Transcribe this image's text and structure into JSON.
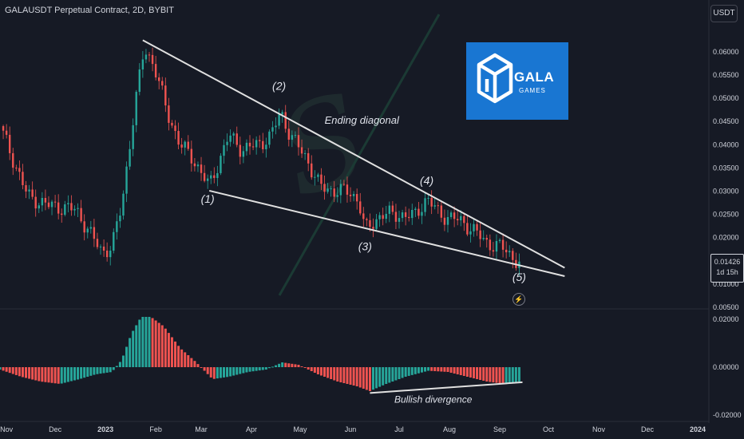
{
  "header": {
    "title": "GALAUSDT Perpetual Contract, 2D, BYBIT",
    "currency": "USDT"
  },
  "logo": {
    "icon": "gala-cube-logo",
    "name": "GALA",
    "sub": "GAMES"
  },
  "last_price": {
    "value": "0.01426",
    "countdown": "1d 15h"
  },
  "icons": {
    "alert": "lightning-icon"
  },
  "colors": {
    "up": "#26a69a",
    "down": "#ef5350",
    "background": "#161a25",
    "lines": "#e0e0e0"
  },
  "chart_data": [
    {
      "type": "candlestick",
      "pane": "price",
      "ylim": [
        0.005,
        0.066
      ],
      "y_ticks": [
        "0.00500",
        "0.01000",
        "0.01500",
        "0.02000",
        "0.02500",
        "0.03000",
        "0.03500",
        "0.04000",
        "0.04500",
        "0.05000",
        "0.05500",
        "0.06000"
      ],
      "x_ticks": [
        "Nov",
        "Dec",
        "2023",
        "Feb",
        "Mar",
        "Apr",
        "May",
        "Jun",
        "Jul",
        "Aug",
        "Sep",
        "Oct",
        "Nov",
        "Dec",
        "2024"
      ],
      "close_path": [
        {
          "x": "2022-10-28",
          "y": 0.044
        },
        {
          "x": "2022-11-06",
          "y": 0.036
        },
        {
          "x": "2022-11-14",
          "y": 0.029
        },
        {
          "x": "2022-11-26",
          "y": 0.027
        },
        {
          "x": "2022-12-14",
          "y": 0.026
        },
        {
          "x": "2022-12-24",
          "y": 0.02
        },
        {
          "x": "2022-12-30",
          "y": 0.017
        },
        {
          "x": "2023-01-05",
          "y": 0.018
        },
        {
          "x": "2023-01-11",
          "y": 0.027
        },
        {
          "x": "2023-01-19",
          "y": 0.048
        },
        {
          "x": "2023-01-25",
          "y": 0.061
        },
        {
          "x": "2023-01-31",
          "y": 0.057
        },
        {
          "x": "2023-02-08",
          "y": 0.047
        },
        {
          "x": "2023-02-16",
          "y": 0.04
        },
        {
          "x": "2023-02-24",
          "y": 0.037
        },
        {
          "x": "2023-03-06",
          "y": 0.031
        },
        {
          "x": "2023-03-18",
          "y": 0.042
        },
        {
          "x": "2023-03-26",
          "y": 0.039
        },
        {
          "x": "2023-04-05",
          "y": 0.04
        },
        {
          "x": "2023-04-13",
          "y": 0.042
        },
        {
          "x": "2023-04-19",
          "y": 0.047
        },
        {
          "x": "2023-04-25",
          "y": 0.042
        },
        {
          "x": "2023-05-05",
          "y": 0.037
        },
        {
          "x": "2023-05-13",
          "y": 0.031
        },
        {
          "x": "2023-05-23",
          "y": 0.03
        },
        {
          "x": "2023-05-31",
          "y": 0.03
        },
        {
          "x": "2023-06-06",
          "y": 0.028
        },
        {
          "x": "2023-06-10",
          "y": 0.0215
        },
        {
          "x": "2023-06-20",
          "y": 0.025
        },
        {
          "x": "2023-06-30",
          "y": 0.025
        },
        {
          "x": "2023-07-10",
          "y": 0.0245
        },
        {
          "x": "2023-07-18",
          "y": 0.0285
        },
        {
          "x": "2023-07-26",
          "y": 0.025
        },
        {
          "x": "2023-08-05",
          "y": 0.024
        },
        {
          "x": "2023-08-15",
          "y": 0.022
        },
        {
          "x": "2023-08-23",
          "y": 0.019
        },
        {
          "x": "2023-09-02",
          "y": 0.018
        },
        {
          "x": "2023-09-10",
          "y": 0.0155
        },
        {
          "x": "2023-09-14",
          "y": 0.01426
        }
      ],
      "trendlines": [
        {
          "from": {
            "x": "2023-01-24",
            "y": 0.0625
          },
          "to": {
            "x": "2023-10-11",
            "y": 0.0135
          }
        },
        {
          "from": {
            "x": "2023-03-06",
            "y": 0.0301
          },
          "to": {
            "x": "2023-10-11",
            "y": 0.0117
          }
        }
      ],
      "annotations": [
        {
          "text": "(1)",
          "x": "2023-03-05",
          "y": 0.0275
        },
        {
          "text": "(2)",
          "x": "2023-04-18",
          "y": 0.0518
        },
        {
          "text": "(3)",
          "x": "2023-06-10",
          "y": 0.0173
        },
        {
          "text": "(4)",
          "x": "2023-07-18",
          "y": 0.0315
        },
        {
          "text": "(5)",
          "x": "2023-09-13",
          "y": 0.0107
        },
        {
          "text": "Ending diagonal",
          "x": "2023-06-08",
          "y": 0.0445
        }
      ]
    },
    {
      "type": "histogram",
      "pane": "oscillator",
      "ylim": [
        -0.022,
        0.024
      ],
      "y_ticks": [
        "0.02000",
        "0.00000",
        "-0.02000"
      ],
      "series_path": [
        {
          "x": "2022-10-28",
          "y": -0.001
        },
        {
          "x": "2022-11-10",
          "y": -0.004
        },
        {
          "x": "2022-11-22",
          "y": -0.006
        },
        {
          "x": "2022-12-04",
          "y": -0.007
        },
        {
          "x": "2022-12-16",
          "y": -0.005
        },
        {
          "x": "2022-12-26",
          "y": -0.003
        },
        {
          "x": "2023-01-05",
          "y": -0.002
        },
        {
          "x": "2023-01-11",
          "y": 0.003
        },
        {
          "x": "2023-01-17",
          "y": 0.014
        },
        {
          "x": "2023-01-23",
          "y": 0.021
        },
        {
          "x": "2023-01-29",
          "y": 0.021
        },
        {
          "x": "2023-02-06",
          "y": 0.017
        },
        {
          "x": "2023-02-16",
          "y": 0.008
        },
        {
          "x": "2023-02-26",
          "y": 0.002
        },
        {
          "x": "2023-03-08",
          "y": -0.005
        },
        {
          "x": "2023-03-18",
          "y": -0.004
        },
        {
          "x": "2023-03-30",
          "y": -0.002
        },
        {
          "x": "2023-04-10",
          "y": -0.001
        },
        {
          "x": "2023-04-20",
          "y": 0.002
        },
        {
          "x": "2023-04-30",
          "y": 0.001
        },
        {
          "x": "2023-05-12",
          "y": -0.003
        },
        {
          "x": "2023-05-24",
          "y": -0.006
        },
        {
          "x": "2023-06-05",
          "y": -0.008
        },
        {
          "x": "2023-06-13",
          "y": -0.01
        },
        {
          "x": "2023-06-23",
          "y": -0.007
        },
        {
          "x": "2023-07-05",
          "y": -0.004
        },
        {
          "x": "2023-07-19",
          "y": -0.0015
        },
        {
          "x": "2023-07-31",
          "y": -0.002
        },
        {
          "x": "2023-08-12",
          "y": -0.004
        },
        {
          "x": "2023-08-24",
          "y": -0.006
        },
        {
          "x": "2023-09-04",
          "y": -0.007
        },
        {
          "x": "2023-09-14",
          "y": -0.006
        }
      ],
      "trendlines": [
        {
          "from": {
            "x": "2023-06-13",
            "y": -0.0108
          },
          "to": {
            "x": "2023-09-15",
            "y": -0.0063
          }
        }
      ],
      "annotations": [
        {
          "text": "Bullish divergence",
          "x": "2023-07-22",
          "y": -0.0148
        }
      ]
    }
  ]
}
